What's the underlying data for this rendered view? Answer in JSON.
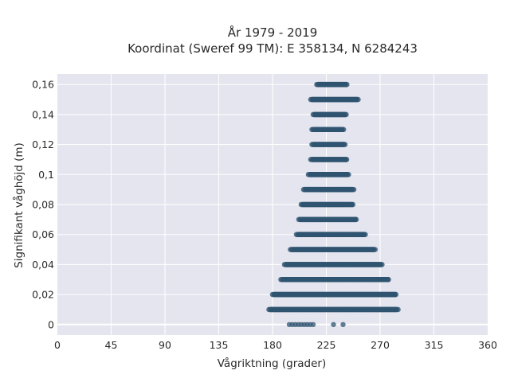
{
  "chart_data": {
    "type": "scatter",
    "title_line1": "År 1979 - 2019",
    "title_line2": "Koordinat (Sweref 99 TM): E 358134, N 6284243",
    "xlabel": "Vågriktning (grader)",
    "ylabel": "Signifikant våghöjd (m)",
    "xlim": [
      0,
      360
    ],
    "ylim": [
      -0.007,
      0.167
    ],
    "x_ticks": [
      0,
      45,
      90,
      135,
      180,
      225,
      270,
      315,
      360
    ],
    "x_tick_labels": [
      "0",
      "45",
      "90",
      "135",
      "180",
      "225",
      "270",
      "315",
      "360"
    ],
    "y_ticks": [
      0,
      0.02,
      0.04,
      0.06,
      0.08,
      0.1,
      0.12,
      0.14,
      0.16
    ],
    "y_tick_labels": [
      "0",
      "0,02",
      "0,04",
      "0,06",
      "0,08",
      "0,1",
      "0,12",
      "0,14",
      "0,16"
    ],
    "grid": true,
    "marker_color": "#2f5470",
    "background_color": "#e5e5ef",
    "bands": [
      {
        "y": 0.0,
        "x_min": 194,
        "x_max": 216,
        "extra_x": [
          231,
          239
        ],
        "sparse": true
      },
      {
        "y": 0.01,
        "x_min": 177,
        "x_max": 285
      },
      {
        "y": 0.02,
        "x_min": 180,
        "x_max": 284
      },
      {
        "y": 0.03,
        "x_min": 187,
        "x_max": 278
      },
      {
        "y": 0.04,
        "x_min": 190,
        "x_max": 272
      },
      {
        "y": 0.05,
        "x_min": 195,
        "x_max": 266
      },
      {
        "y": 0.06,
        "x_min": 200,
        "x_max": 258
      },
      {
        "y": 0.07,
        "x_min": 202,
        "x_max": 251
      },
      {
        "y": 0.08,
        "x_min": 204,
        "x_max": 248
      },
      {
        "y": 0.09,
        "x_min": 206,
        "x_max": 248
      },
      {
        "y": 0.1,
        "x_min": 210,
        "x_max": 244
      },
      {
        "y": 0.11,
        "x_min": 212,
        "x_max": 243
      },
      {
        "y": 0.12,
        "x_min": 213,
        "x_max": 241
      },
      {
        "y": 0.13,
        "x_min": 213,
        "x_max": 240
      },
      {
        "y": 0.14,
        "x_min": 214,
        "x_max": 242
      },
      {
        "y": 0.15,
        "x_min": 212,
        "x_max": 252
      },
      {
        "y": 0.16,
        "x_min": 217,
        "x_max": 243
      }
    ]
  }
}
